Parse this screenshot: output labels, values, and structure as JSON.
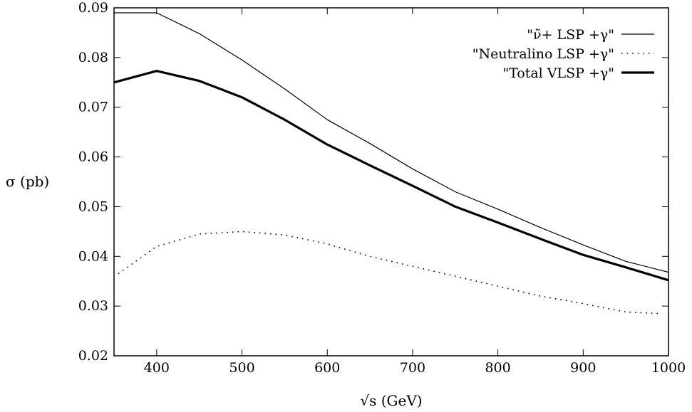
{
  "chart_data": {
    "type": "line",
    "xlabel": "√s (GeV)",
    "ylabel": "σ (pb)",
    "xlim": [
      350,
      1000
    ],
    "ylim": [
      0.02,
      0.09
    ],
    "xticks": [
      400,
      500,
      600,
      700,
      800,
      900,
      1000
    ],
    "yticks": [
      0.02,
      0.03,
      0.04,
      0.05,
      0.06,
      0.07,
      0.08,
      0.09
    ],
    "ytick_labels": [
      "0.02",
      "0.03",
      "0.04",
      "0.05",
      "0.06",
      "0.07",
      "0.08",
      "0.09"
    ],
    "grid": false,
    "legend_position": "top-right",
    "series": [
      {
        "name": "\"ν̃+ LSP +γ\"",
        "style": "thin-solid",
        "x": [
          350,
          400,
          450,
          500,
          550,
          600,
          650,
          700,
          750,
          800,
          850,
          900,
          950,
          1000
        ],
        "y": [
          0.089,
          0.089,
          0.0848,
          0.0795,
          0.0737,
          0.0675,
          0.0627,
          0.0576,
          0.053,
          0.0495,
          0.0458,
          0.0423,
          0.039,
          0.0368
        ]
      },
      {
        "name": "\"Neutralino LSP +γ\"",
        "style": "dotted",
        "x": [
          355,
          400,
          450,
          500,
          550,
          600,
          650,
          700,
          750,
          800,
          850,
          900,
          950,
          990
        ],
        "y": [
          0.0365,
          0.042,
          0.0445,
          0.045,
          0.0443,
          0.0425,
          0.04,
          0.038,
          0.036,
          0.034,
          0.032,
          0.0305,
          0.0288,
          0.0285
        ]
      },
      {
        "name": "\"Total VLSP +γ\"",
        "style": "thick-solid",
        "x": [
          350,
          400,
          450,
          500,
          550,
          600,
          650,
          700,
          750,
          800,
          850,
          900,
          950,
          1000
        ],
        "y": [
          0.075,
          0.0773,
          0.0753,
          0.072,
          0.0675,
          0.0625,
          0.0583,
          0.0542,
          0.05,
          0.0468,
          0.0435,
          0.0403,
          0.0378,
          0.0352
        ]
      }
    ]
  }
}
